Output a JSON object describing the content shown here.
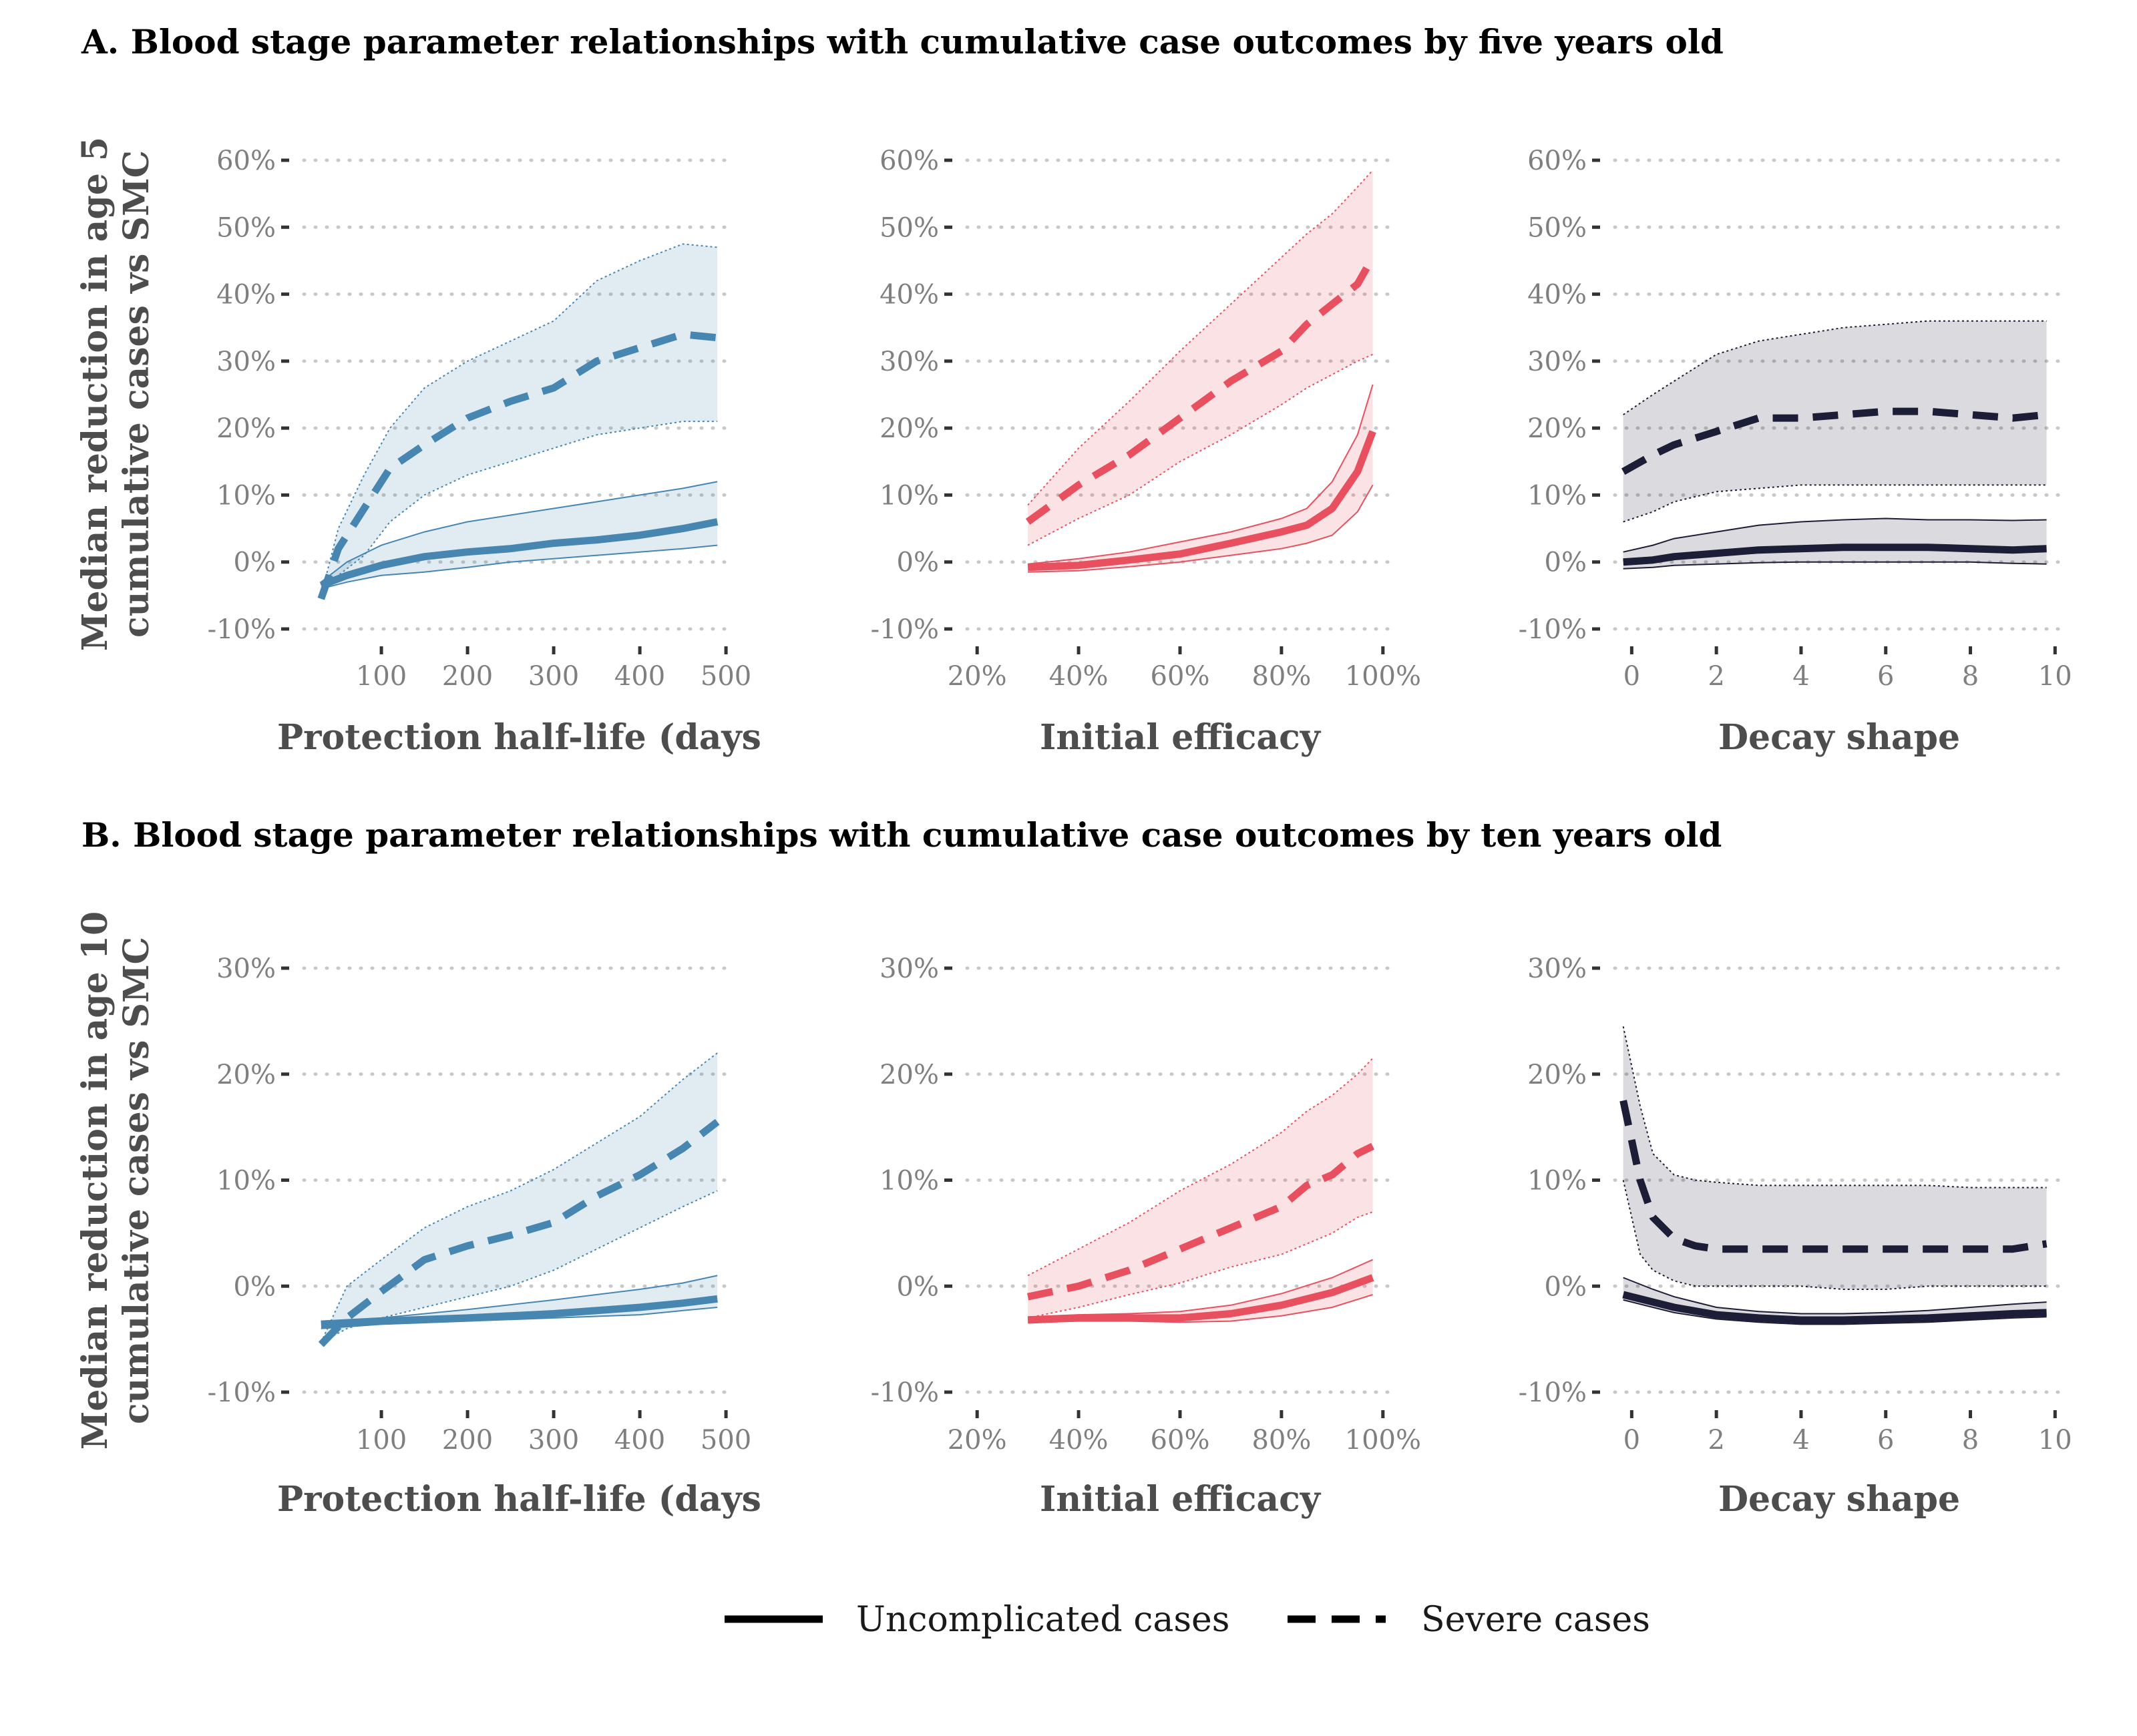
{
  "colors": {
    "half_life": "#4686b0",
    "efficacy": "#e8505f",
    "shape": "#1c1d36",
    "text_title": "#000000",
    "text_axis": "#4d4d4d",
    "text_tick": "#7f7f7f"
  },
  "rows": [
    {
      "title": "A. Blood stage parameter relationships with cumulative case outcomes by five years old",
      "ylabel_line1": "Median reduction in age 5",
      "ylabel_line2": "cumulative cases vs SMC"
    },
    {
      "title": "B. Blood stage parameter relationships with cumulative case outcomes by ten years old",
      "ylabel_line1": "Median reduction in age 10",
      "ylabel_line2": "cumulative cases vs SMC"
    }
  ],
  "legend": {
    "uncomplicated": "Uncomplicated cases",
    "severe": "Severe cases"
  },
  "chart_data": [
    {
      "type": "line",
      "row": 0,
      "col": 0,
      "color_key": "half_life",
      "xlabel": "Protection half-life (days",
      "xlim": [
        10,
        510
      ],
      "xticks": [
        100,
        200,
        300,
        400,
        500
      ],
      "xtick_labels": [
        "100",
        "200",
        "300",
        "400",
        "500"
      ],
      "ylim": [
        -12,
        62
      ],
      "yticks": [
        -10,
        0,
        10,
        20,
        30,
        40,
        50,
        60
      ],
      "ytick_labels": [
        "-10%",
        "0%",
        "10%",
        "20%",
        "30%",
        "40%",
        "50%",
        "60%"
      ],
      "grid": true,
      "series": [
        {
          "name": "Uncomplicated cases",
          "style": "solid",
          "x": [
            30,
            60,
            100,
            150,
            200,
            250,
            300,
            350,
            400,
            450,
            490
          ],
          "y": [
            -3.5,
            -2.0,
            -0.5,
            0.8,
            1.5,
            2.0,
            2.8,
            3.3,
            4.0,
            5.0,
            6.0
          ],
          "lower": [
            -4.0,
            -3.0,
            -2.0,
            -1.5,
            -0.8,
            0.0,
            0.5,
            1.0,
            1.5,
            2.0,
            2.5
          ],
          "upper": [
            -3.0,
            0.0,
            2.5,
            4.5,
            6.0,
            7.0,
            8.0,
            9.0,
            10.0,
            11.0,
            12.0
          ]
        },
        {
          "name": "Severe cases",
          "style": "dashed",
          "x": [
            30,
            50,
            80,
            110,
            150,
            200,
            250,
            300,
            350,
            400,
            450,
            490
          ],
          "y": [
            -5.5,
            2.0,
            8.0,
            14.0,
            17.5,
            21.5,
            24.0,
            26.0,
            30.0,
            32.0,
            34.0,
            33.5
          ],
          "lower": [
            -5.0,
            -2.0,
            1.0,
            6.0,
            10.0,
            13.0,
            15.0,
            17.0,
            19.0,
            20.0,
            21.0,
            21.0
          ],
          "upper": [
            -5.0,
            5.0,
            13.0,
            20.0,
            26.0,
            30.0,
            33.0,
            36.0,
            42.0,
            45.0,
            47.5,
            47.0
          ]
        }
      ]
    },
    {
      "type": "line",
      "row": 0,
      "col": 1,
      "color_key": "efficacy",
      "xlabel": "Initial efficacy",
      "xlim": [
        0.18,
        1.02
      ],
      "xticks": [
        0.2,
        0.4,
        0.6,
        0.8,
        1.0
      ],
      "xtick_labels": [
        "20%",
        "40%",
        "60%",
        "80%",
        "100%"
      ],
      "ylim": [
        -12,
        62
      ],
      "yticks": [
        -10,
        0,
        10,
        20,
        30,
        40,
        50,
        60
      ],
      "ytick_labels": [
        "-10%",
        "0%",
        "10%",
        "20%",
        "30%",
        "40%",
        "50%",
        "60%"
      ],
      "grid": true,
      "series": [
        {
          "name": "Uncomplicated cases",
          "style": "solid",
          "x": [
            0.3,
            0.4,
            0.5,
            0.6,
            0.7,
            0.8,
            0.85,
            0.9,
            0.95,
            0.98
          ],
          "y": [
            -0.8,
            -0.5,
            0.3,
            1.2,
            2.8,
            4.5,
            5.5,
            8.0,
            13.5,
            19.5
          ],
          "lower": [
            -1.5,
            -1.3,
            -0.7,
            0.0,
            1.0,
            2.0,
            2.8,
            4.0,
            7.5,
            11.5
          ],
          "upper": [
            -0.3,
            0.5,
            1.5,
            3.0,
            4.5,
            6.5,
            8.0,
            12.0,
            19.0,
            26.5
          ]
        },
        {
          "name": "Severe cases",
          "style": "dashed",
          "x": [
            0.3,
            0.4,
            0.5,
            0.6,
            0.7,
            0.8,
            0.85,
            0.9,
            0.95,
            0.98
          ],
          "y": [
            6.0,
            11.5,
            16.0,
            21.5,
            27.0,
            31.5,
            35.5,
            38.5,
            41.5,
            45.5
          ],
          "lower": [
            2.5,
            6.5,
            10.0,
            15.0,
            19.0,
            23.5,
            26.0,
            28.0,
            30.0,
            31.0
          ],
          "upper": [
            8.5,
            17.0,
            24.0,
            31.5,
            38.5,
            45.5,
            49.0,
            52.0,
            56.0,
            58.5
          ]
        }
      ]
    },
    {
      "type": "line",
      "row": 0,
      "col": 2,
      "color_key": "shape",
      "xlabel": "Decay shape",
      "xlim": [
        -0.4,
        10.2
      ],
      "xticks": [
        0,
        2,
        4,
        6,
        8,
        10
      ],
      "xtick_labels": [
        "0",
        "2",
        "4",
        "6",
        "8",
        "10"
      ],
      "ylim": [
        -12,
        62
      ],
      "yticks": [
        -10,
        0,
        10,
        20,
        30,
        40,
        50,
        60
      ],
      "ytick_labels": [
        "-10%",
        "0%",
        "10%",
        "20%",
        "30%",
        "40%",
        "50%",
        "60%"
      ],
      "grid": true,
      "series": [
        {
          "name": "Uncomplicated cases",
          "style": "solid",
          "x": [
            -0.2,
            0.5,
            1,
            2,
            3,
            4,
            5,
            6,
            7,
            8,
            9,
            9.8
          ],
          "y": [
            0.0,
            0.3,
            0.8,
            1.3,
            1.8,
            2.0,
            2.2,
            2.2,
            2.2,
            2.0,
            1.8,
            2.0
          ],
          "lower": [
            -1.0,
            -0.8,
            -0.5,
            -0.3,
            -0.1,
            0.0,
            0.0,
            0.0,
            0.0,
            0.0,
            -0.2,
            -0.3
          ],
          "upper": [
            1.5,
            2.5,
            3.5,
            4.5,
            5.5,
            6.0,
            6.3,
            6.5,
            6.3,
            6.3,
            6.2,
            6.3
          ]
        },
        {
          "name": "Severe cases",
          "style": "dashed",
          "x": [
            -0.2,
            0.5,
            1,
            2,
            3,
            4,
            5,
            6,
            7,
            8,
            9,
            9.8
          ],
          "y": [
            13.5,
            16.0,
            17.5,
            19.5,
            21.5,
            21.5,
            22.0,
            22.5,
            22.5,
            22.0,
            21.5,
            22.0
          ],
          "lower": [
            6.0,
            7.5,
            9.0,
            10.5,
            11.0,
            11.5,
            11.5,
            11.5,
            11.5,
            11.5,
            11.5,
            11.5
          ],
          "upper": [
            22.0,
            25.0,
            27.0,
            31.0,
            33.0,
            34.0,
            35.0,
            35.5,
            36.0,
            36.0,
            36.0,
            36.0
          ]
        }
      ]
    },
    {
      "type": "line",
      "row": 1,
      "col": 0,
      "color_key": "half_life",
      "xlabel": "Protection half-life (days",
      "xlim": [
        10,
        510
      ],
      "xticks": [
        100,
        200,
        300,
        400,
        500
      ],
      "xtick_labels": [
        "100",
        "200",
        "300",
        "400",
        "500"
      ],
      "ylim": [
        -12,
        32
      ],
      "yticks": [
        -10,
        0,
        10,
        20,
        30
      ],
      "ytick_labels": [
        "-10%",
        "0%",
        "10%",
        "20%",
        "30%"
      ],
      "grid": true,
      "series": [
        {
          "name": "Uncomplicated cases",
          "style": "solid",
          "x": [
            30,
            100,
            200,
            300,
            400,
            450,
            490
          ],
          "y": [
            -3.6,
            -3.3,
            -3.0,
            -2.6,
            -2.0,
            -1.6,
            -1.2
          ],
          "lower": [
            -4.0,
            -3.6,
            -3.3,
            -3.0,
            -2.7,
            -2.3,
            -2.0
          ],
          "upper": [
            -3.3,
            -3.0,
            -2.2,
            -1.3,
            -0.3,
            0.3,
            1.0
          ]
        },
        {
          "name": "Severe cases",
          "style": "dashed",
          "x": [
            30,
            60,
            100,
            150,
            200,
            250,
            300,
            350,
            400,
            450,
            490
          ],
          "y": [
            -5.5,
            -3.0,
            -0.5,
            2.5,
            3.8,
            4.8,
            6.0,
            8.5,
            10.5,
            13.0,
            15.5
          ],
          "lower": [
            -5.3,
            -4.0,
            -3.0,
            -2.0,
            -1.0,
            0.0,
            1.5,
            3.5,
            5.5,
            7.5,
            9.0
          ],
          "upper": [
            -5.3,
            0.0,
            2.5,
            5.5,
            7.5,
            9.0,
            11.0,
            13.5,
            16.0,
            19.5,
            22.0
          ]
        }
      ]
    },
    {
      "type": "line",
      "row": 1,
      "col": 1,
      "color_key": "efficacy",
      "xlabel": "Initial efficacy",
      "xlim": [
        0.18,
        1.02
      ],
      "xticks": [
        0.2,
        0.4,
        0.6,
        0.8,
        1.0
      ],
      "xtick_labels": [
        "20%",
        "40%",
        "60%",
        "80%",
        "100%"
      ],
      "ylim": [
        -12,
        32
      ],
      "yticks": [
        -10,
        0,
        10,
        20,
        30
      ],
      "ytick_labels": [
        "-10%",
        "0%",
        "10%",
        "20%",
        "30%"
      ],
      "grid": true,
      "series": [
        {
          "name": "Uncomplicated cases",
          "style": "solid",
          "x": [
            0.3,
            0.4,
            0.5,
            0.6,
            0.7,
            0.8,
            0.9,
            0.98
          ],
          "y": [
            -3.2,
            -3.0,
            -3.0,
            -3.0,
            -2.6,
            -1.8,
            -0.6,
            0.8
          ],
          "lower": [
            -3.4,
            -3.3,
            -3.3,
            -3.4,
            -3.3,
            -2.8,
            -2.0,
            -0.8
          ],
          "upper": [
            -2.9,
            -2.7,
            -2.6,
            -2.4,
            -1.8,
            -0.7,
            0.8,
            2.5
          ]
        },
        {
          "name": "Severe cases",
          "style": "dashed",
          "x": [
            0.3,
            0.4,
            0.5,
            0.6,
            0.7,
            0.8,
            0.85,
            0.9,
            0.95,
            0.98
          ],
          "y": [
            -1.0,
            0.0,
            1.5,
            3.5,
            5.5,
            7.5,
            9.5,
            10.5,
            12.5,
            13.2
          ],
          "lower": [
            -3.0,
            -2.0,
            -0.8,
            0.3,
            1.8,
            3.0,
            4.0,
            5.0,
            6.5,
            7.0
          ],
          "upper": [
            1.0,
            3.5,
            6.0,
            9.0,
            11.5,
            14.5,
            16.5,
            18.0,
            20.0,
            21.5
          ]
        }
      ]
    },
    {
      "type": "line",
      "row": 1,
      "col": 2,
      "color_key": "shape",
      "xlabel": "Decay shape",
      "xlim": [
        -0.4,
        10.2
      ],
      "xticks": [
        0,
        2,
        4,
        6,
        8,
        10
      ],
      "xtick_labels": [
        "0",
        "2",
        "4",
        "6",
        "8",
        "10"
      ],
      "ylim": [
        -12,
        32
      ],
      "yticks": [
        -10,
        0,
        10,
        20,
        30
      ],
      "ytick_labels": [
        "-10%",
        "0%",
        "10%",
        "20%",
        "30%"
      ],
      "grid": true,
      "series": [
        {
          "name": "Uncomplicated cases",
          "style": "solid",
          "x": [
            -0.2,
            0.5,
            1,
            2,
            3,
            4,
            5,
            6,
            7,
            8,
            9,
            9.8
          ],
          "y": [
            -0.8,
            -1.5,
            -2.0,
            -2.7,
            -3.0,
            -3.2,
            -3.2,
            -3.1,
            -3.0,
            -2.8,
            -2.6,
            -2.5
          ],
          "lower": [
            -1.3,
            -2.0,
            -2.5,
            -3.1,
            -3.4,
            -3.6,
            -3.6,
            -3.5,
            -3.4,
            -3.2,
            -3.0,
            -2.9
          ],
          "upper": [
            0.8,
            -0.3,
            -1.0,
            -2.0,
            -2.4,
            -2.6,
            -2.6,
            -2.5,
            -2.3,
            -2.0,
            -1.7,
            -1.5
          ]
        },
        {
          "name": "Severe cases",
          "style": "dashed",
          "x": [
            -0.2,
            0.2,
            0.5,
            1,
            1.5,
            2,
            3,
            4,
            5,
            6,
            7,
            8,
            9,
            9.8
          ],
          "y": [
            17.5,
            10.0,
            6.5,
            4.5,
            3.8,
            3.5,
            3.5,
            3.5,
            3.5,
            3.5,
            3.5,
            3.5,
            3.5,
            4.0
          ],
          "lower": [
            10.0,
            3.0,
            1.5,
            0.5,
            0.0,
            0.0,
            0.0,
            0.0,
            -0.3,
            -0.3,
            0.0,
            0.0,
            0.0,
            0.0
          ],
          "upper": [
            24.5,
            17.0,
            12.5,
            10.5,
            10.0,
            9.8,
            9.5,
            9.5,
            9.5,
            9.5,
            9.5,
            9.3,
            9.3,
            9.3
          ]
        }
      ]
    }
  ]
}
